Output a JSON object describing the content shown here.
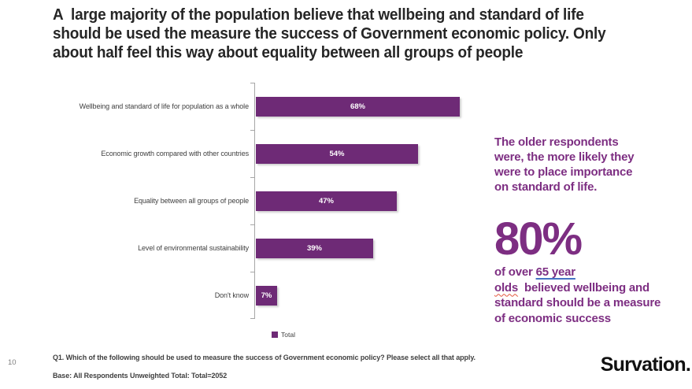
{
  "page": {
    "number": "10"
  },
  "header": {
    "title_lines": [
      "A  large majority of the population believe that wellbeing and standard of life",
      "should be used the measure the success of Government economic policy. Only",
      "about half feel this way about equality between all groups of people"
    ]
  },
  "chart_data": {
    "type": "bar",
    "orientation": "horizontal",
    "title": "",
    "categories": [
      "Wellbeing and standard of life for population as a whole",
      "Economic growth compared with other countries",
      "Equality between all groups of people",
      "Level of environmental sustainability",
      "Don't know"
    ],
    "values": [
      68,
      54,
      47,
      39,
      7
    ],
    "data_labels": [
      "68%",
      "54%",
      "47%",
      "39%",
      "7%"
    ],
    "series": [
      {
        "name": "Total",
        "values": [
          68,
          54,
          47,
          39,
          7
        ]
      }
    ],
    "legend": {
      "position": "bottom-left",
      "entries": [
        "Total"
      ]
    },
    "xlim": [
      0,
      70
    ],
    "grid": false,
    "bar_color": "#6e2a76"
  },
  "sidebar_note": {
    "paragraph_lines": [
      "The older respondents",
      "were, the more likely they",
      "were to place importance",
      "on standard of life."
    ],
    "big_stat": "80%",
    "detail": {
      "prefix": "of over ",
      "underlined": "65 year",
      "misspelled_word": "olds",
      "line2_rest": "  believed wellbeing and",
      "line3": "standard should be a measure",
      "line4": "of economic success"
    }
  },
  "footer": {
    "question": "Q1. Which of the following should be used to measure the success of Government economic policy? Please select all that apply.",
    "base": "Base: All Respondents Unweighted Total: Total=2052",
    "logo": "Survation."
  },
  "colors": {
    "bar": "#6e2a76",
    "accent_text": "#7d2e82",
    "title_text": "#262626",
    "axis": "#a6a6a6",
    "footer_text": "#404040",
    "link_underline": "#4472c4",
    "squiggle": "#e4573d"
  }
}
